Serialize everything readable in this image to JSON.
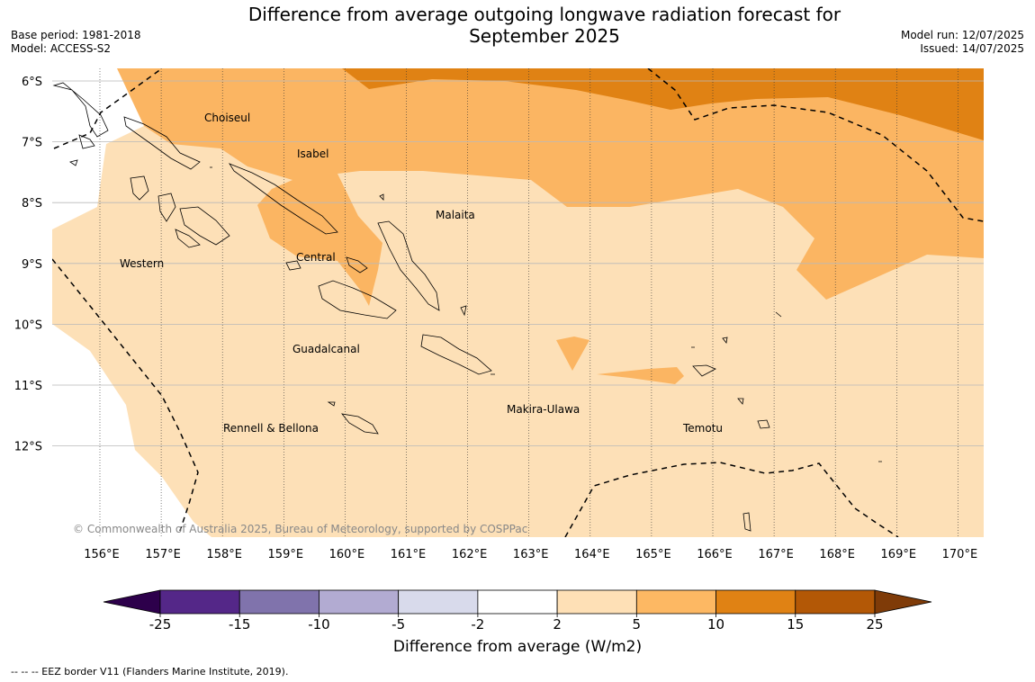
{
  "header": {
    "title_line1": "Difference from average outgoing longwave radiation forecast for",
    "title_line2": "September 2025",
    "base_period": "Base period: 1981-2018",
    "model": "Model: ACCESS-S2",
    "model_run": "Model run: 12/07/2025",
    "issued": "Issued: 14/07/2025"
  },
  "map": {
    "lon_ticks": [
      "156°E",
      "157°E",
      "158°E",
      "159°E",
      "160°E",
      "161°E",
      "162°E",
      "163°E",
      "164°E",
      "165°E",
      "166°E",
      "167°E",
      "168°E",
      "169°E",
      "170°E"
    ],
    "lat_ticks": [
      "6°S",
      "7°S",
      "8°S",
      "9°S",
      "10°S",
      "11°S",
      "12°S"
    ],
    "regions": [
      {
        "name": "Choiseul"
      },
      {
        "name": "Isabel"
      },
      {
        "name": "Malaita"
      },
      {
        "name": "Western"
      },
      {
        "name": "Central"
      },
      {
        "name": "Guadalcanal"
      },
      {
        "name": "Makira-Ulawa"
      },
      {
        "name": "Rennell & Bellona"
      },
      {
        "name": "Temotu"
      }
    ],
    "copyright": "© Commonwealth of Australia 2025, Bureau of Meteorology, supported by COSPPac",
    "fill_colors": {
      "band_2_5": "#fde0b7",
      "band_5_10": "#fbb562",
      "band_10_15": "#e08214",
      "land_gap": "#ffffff"
    }
  },
  "colorbar": {
    "title": "Difference from average (W/m2)",
    "ticks": [
      "-25",
      "-15",
      "-10",
      "-5",
      "-2",
      "2",
      "5",
      "10",
      "15",
      "25"
    ],
    "colors": [
      "#542788",
      "#8073ac",
      "#b2abd2",
      "#d8daeb",
      "#ffffff",
      "#fee0b6",
      "#fdb863",
      "#e08214",
      "#b35806"
    ],
    "under_color": "#2d004b",
    "over_color": "#7f3b08"
  },
  "footnote": "--  --  -- EEZ border V11 (Flanders Marine Institute, 2019)."
}
